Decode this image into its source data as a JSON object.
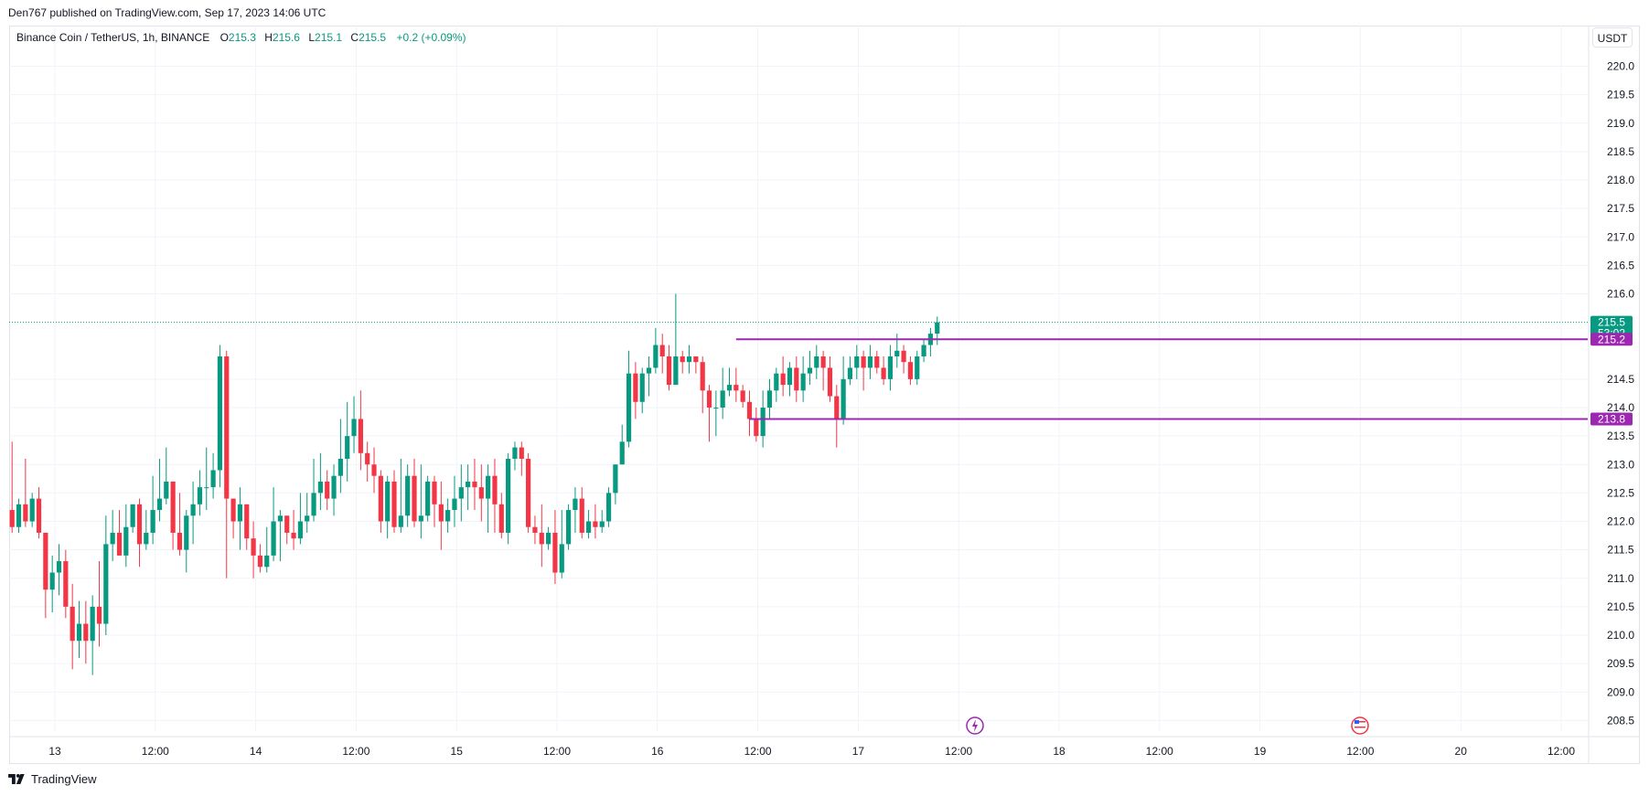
{
  "header": {
    "published_text": "Den767 published on TradingView.com, Sep 17, 2023 14:06 UTC"
  },
  "legend": {
    "symbol": "Binance Coin / TetherUS, 1h, BINANCE",
    "open_label": "O",
    "open_value": "215.3",
    "high_label": "H",
    "high_value": "215.6",
    "low_label": "L",
    "low_value": "215.1",
    "close_label": "C",
    "close_value": "215.5",
    "change": "+0.2 (+0.09%)"
  },
  "currency_button": "USDT",
  "footer": {
    "brand": "TradingView"
  },
  "colors": {
    "up": "#089981",
    "down": "#f23645",
    "level": "#9c27b0",
    "grid": "#f0f3fa",
    "text": "#131722"
  },
  "icons": [
    "tradingview-logo-icon",
    "dividend-event-icon",
    "us-flag-event-icon"
  ],
  "chart_data": {
    "type": "candlestick",
    "y_ticks": [
      "220.0",
      "219.5",
      "219.0",
      "218.5",
      "218.0",
      "217.5",
      "217.0",
      "216.5",
      "216.0",
      "214.5",
      "214.0",
      "213.5",
      "213.0",
      "212.5",
      "212.0",
      "211.5",
      "211.0",
      "210.5",
      "210.0",
      "209.5",
      "209.0",
      "208.5"
    ],
    "x_ticks": [
      "13",
      "12:00",
      "14",
      "12:00",
      "15",
      "12:00",
      "16",
      "12:00",
      "17",
      "12:00",
      "18",
      "12:00",
      "19",
      "12:00",
      "20",
      "12:00"
    ],
    "ylim": [
      208.25,
      220.45
    ],
    "grid": true,
    "last_price": {
      "value": "215.5",
      "countdown": "53:02"
    },
    "horizontal_levels": [
      {
        "value": 215.2,
        "label": "215.2"
      },
      {
        "value": 213.8,
        "label": "213.8"
      }
    ],
    "candles": [
      [
        212.2,
        211.9,
        213.4,
        211.8
      ],
      [
        211.9,
        212.3,
        212.4,
        211.8
      ],
      [
        212.3,
        212.0,
        213.1,
        211.9
      ],
      [
        212.0,
        212.4,
        212.5,
        211.9
      ],
      [
        212.4,
        211.8,
        212.6,
        211.7
      ],
      [
        211.8,
        210.8,
        211.8,
        210.3
      ],
      [
        210.8,
        211.1,
        211.4,
        210.4
      ],
      [
        211.1,
        211.3,
        211.6,
        210.7
      ],
      [
        211.3,
        210.5,
        211.5,
        210.3
      ],
      [
        210.5,
        209.9,
        210.9,
        209.4
      ],
      [
        209.9,
        210.2,
        210.6,
        209.6
      ],
      [
        210.2,
        209.9,
        210.6,
        209.5
      ],
      [
        209.9,
        210.5,
        210.7,
        209.3
      ],
      [
        210.5,
        210.2,
        211.3,
        209.8
      ],
      [
        210.2,
        211.6,
        212.1,
        210.0
      ],
      [
        211.6,
        211.8,
        212.2,
        211.3
      ],
      [
        211.8,
        211.4,
        212.2,
        211.4
      ],
      [
        211.4,
        211.9,
        212.3,
        211.2
      ],
      [
        211.9,
        212.3,
        212.3,
        211.8
      ],
      [
        212.3,
        211.6,
        212.4,
        211.2
      ],
      [
        211.6,
        211.8,
        212.2,
        211.5
      ],
      [
        211.8,
        212.2,
        212.8,
        211.6
      ],
      [
        212.2,
        212.4,
        213.1,
        212.0
      ],
      [
        212.4,
        212.7,
        213.3,
        212.3
      ],
      [
        212.7,
        211.8,
        212.7,
        211.5
      ],
      [
        211.8,
        211.5,
        212.5,
        211.4
      ],
      [
        211.5,
        212.1,
        212.2,
        211.1
      ],
      [
        212.1,
        212.3,
        212.7,
        211.6
      ],
      [
        212.3,
        212.6,
        212.9,
        212.1
      ],
      [
        212.6,
        212.6,
        213.3,
        212.2
      ],
      [
        212.6,
        212.9,
        213.2,
        212.4
      ],
      [
        212.9,
        214.9,
        215.1,
        212.6
      ],
      [
        214.9,
        212.4,
        215.0,
        211.0
      ],
      [
        212.4,
        212.0,
        212.4,
        211.7
      ],
      [
        212.0,
        212.3,
        212.6,
        211.5
      ],
      [
        212.3,
        211.7,
        212.3,
        211.5
      ],
      [
        211.7,
        211.4,
        212.0,
        211.0
      ],
      [
        211.4,
        211.2,
        211.6,
        211.1
      ],
      [
        211.2,
        211.4,
        211.9,
        211.1
      ],
      [
        211.4,
        212.0,
        212.6,
        211.3
      ],
      [
        212.0,
        212.1,
        212.2,
        211.3
      ],
      [
        212.1,
        211.8,
        212.1,
        211.6
      ],
      [
        211.8,
        211.7,
        212.2,
        211.5
      ],
      [
        211.7,
        212.0,
        212.5,
        211.6
      ],
      [
        212.0,
        212.1,
        212.5,
        211.8
      ],
      [
        212.1,
        212.5,
        213.1,
        212.0
      ],
      [
        212.5,
        212.7,
        213.2,
        212.2
      ],
      [
        212.7,
        212.4,
        212.9,
        212.2
      ],
      [
        212.4,
        212.8,
        213.0,
        212.1
      ],
      [
        212.8,
        213.1,
        213.8,
        212.5
      ],
      [
        213.1,
        213.5,
        214.1,
        212.7
      ],
      [
        213.5,
        213.8,
        214.2,
        213.2
      ],
      [
        213.8,
        213.2,
        214.3,
        212.9
      ],
      [
        213.2,
        213.0,
        213.4,
        212.7
      ],
      [
        213.0,
        212.8,
        213.3,
        212.5
      ],
      [
        212.8,
        212.0,
        212.9,
        211.8
      ],
      [
        212.0,
        212.7,
        212.8,
        211.7
      ],
      [
        212.7,
        211.9,
        212.9,
        211.8
      ],
      [
        211.9,
        212.1,
        213.1,
        211.8
      ],
      [
        212.1,
        212.8,
        213.0,
        211.9
      ],
      [
        212.8,
        212.0,
        213.1,
        211.9
      ],
      [
        212.0,
        212.1,
        213.0,
        211.7
      ],
      [
        212.1,
        212.7,
        212.8,
        212.0
      ],
      [
        212.7,
        212.3,
        212.8,
        211.9
      ],
      [
        212.3,
        212.0,
        212.7,
        211.5
      ],
      [
        212.0,
        212.2,
        212.4,
        211.8
      ],
      [
        212.2,
        212.4,
        212.8,
        211.9
      ],
      [
        212.4,
        212.6,
        213.0,
        212.0
      ],
      [
        212.6,
        212.7,
        213.0,
        212.2
      ],
      [
        212.7,
        212.6,
        213.1,
        212.2
      ],
      [
        212.6,
        212.4,
        213.0,
        212.0
      ],
      [
        212.4,
        212.8,
        213.0,
        211.8
      ],
      [
        212.8,
        212.3,
        213.1,
        211.8
      ],
      [
        212.3,
        211.8,
        212.5,
        211.7
      ],
      [
        211.8,
        213.1,
        213.2,
        211.6
      ],
      [
        213.1,
        213.3,
        213.4,
        212.9
      ],
      [
        213.3,
        213.1,
        213.4,
        212.8
      ],
      [
        213.1,
        211.9,
        213.2,
        211.8
      ],
      [
        211.9,
        211.8,
        212.1,
        211.6
      ],
      [
        211.8,
        211.6,
        212.3,
        211.2
      ],
      [
        211.6,
        211.8,
        211.9,
        211.5
      ],
      [
        211.8,
        211.1,
        212.2,
        210.9
      ],
      [
        211.1,
        211.6,
        212.2,
        211.0
      ],
      [
        211.6,
        212.2,
        212.3,
        211.5
      ],
      [
        212.2,
        212.4,
        212.6,
        211.8
      ],
      [
        212.4,
        211.8,
        212.6,
        211.7
      ],
      [
        211.8,
        212.0,
        212.2,
        211.7
      ],
      [
        212.0,
        211.9,
        212.3,
        211.7
      ],
      [
        211.9,
        212.0,
        212.2,
        211.8
      ],
      [
        212.0,
        212.5,
        212.6,
        211.9
      ],
      [
        212.5,
        213.0,
        213.0,
        212.3
      ],
      [
        213.0,
        213.4,
        213.7,
        213.0
      ],
      [
        213.4,
        214.6,
        215.0,
        213.3
      ],
      [
        214.6,
        214.1,
        214.8,
        213.8
      ],
      [
        214.1,
        214.6,
        214.7,
        213.9
      ],
      [
        214.6,
        214.7,
        214.9,
        214.2
      ],
      [
        214.7,
        215.1,
        215.4,
        214.6
      ],
      [
        215.1,
        214.9,
        215.3,
        214.6
      ],
      [
        214.9,
        214.4,
        215.1,
        214.3
      ],
      [
        214.4,
        214.9,
        216.0,
        214.4
      ],
      [
        214.9,
        214.8,
        215.0,
        214.6
      ],
      [
        214.8,
        214.9,
        215.1,
        214.6
      ],
      [
        214.9,
        214.8,
        214.9,
        214.6
      ],
      [
        214.8,
        214.3,
        214.9,
        213.9
      ],
      [
        214.3,
        214.0,
        214.4,
        213.4
      ],
      [
        214.0,
        214.0,
        214.3,
        213.5
      ],
      [
        214.0,
        214.3,
        214.7,
        213.8
      ],
      [
        214.3,
        214.4,
        214.7,
        214.2
      ],
      [
        214.4,
        214.3,
        214.7,
        214.1
      ],
      [
        214.3,
        214.1,
        214.4,
        214.0
      ],
      [
        214.1,
        213.8,
        214.3,
        213.5
      ],
      [
        213.8,
        213.5,
        214.0,
        213.4
      ],
      [
        213.5,
        214.0,
        214.3,
        213.3
      ],
      [
        214.0,
        214.3,
        214.5,
        213.8
      ],
      [
        214.3,
        214.6,
        214.7,
        214.1
      ],
      [
        214.6,
        214.4,
        214.9,
        214.2
      ],
      [
        214.4,
        214.7,
        214.8,
        214.2
      ],
      [
        214.7,
        214.3,
        214.9,
        214.1
      ],
      [
        214.3,
        214.6,
        214.9,
        214.1
      ],
      [
        214.6,
        214.7,
        215.0,
        214.4
      ],
      [
        214.7,
        214.9,
        215.1,
        214.5
      ],
      [
        214.9,
        214.7,
        215.0,
        214.3
      ],
      [
        214.7,
        214.2,
        214.9,
        214.1
      ],
      [
        214.2,
        213.8,
        214.4,
        213.3
      ],
      [
        213.8,
        214.5,
        214.9,
        213.7
      ],
      [
        214.5,
        214.7,
        214.9,
        214.4
      ],
      [
        214.7,
        214.9,
        215.1,
        214.5
      ],
      [
        214.9,
        214.7,
        215.0,
        214.3
      ],
      [
        214.7,
        214.9,
        215.1,
        214.5
      ],
      [
        214.9,
        214.7,
        215.0,
        214.6
      ],
      [
        214.7,
        214.5,
        214.9,
        214.4
      ],
      [
        214.5,
        214.9,
        215.1,
        214.3
      ],
      [
        214.9,
        215.0,
        215.3,
        214.7
      ],
      [
        215.0,
        214.8,
        215.1,
        214.6
      ],
      [
        214.8,
        214.5,
        214.9,
        214.4
      ],
      [
        214.5,
        214.9,
        215.0,
        214.4
      ],
      [
        214.9,
        215.1,
        215.2,
        214.8
      ],
      [
        215.1,
        215.3,
        215.4,
        214.9
      ],
      [
        215.3,
        215.5,
        215.6,
        215.1
      ]
    ]
  }
}
